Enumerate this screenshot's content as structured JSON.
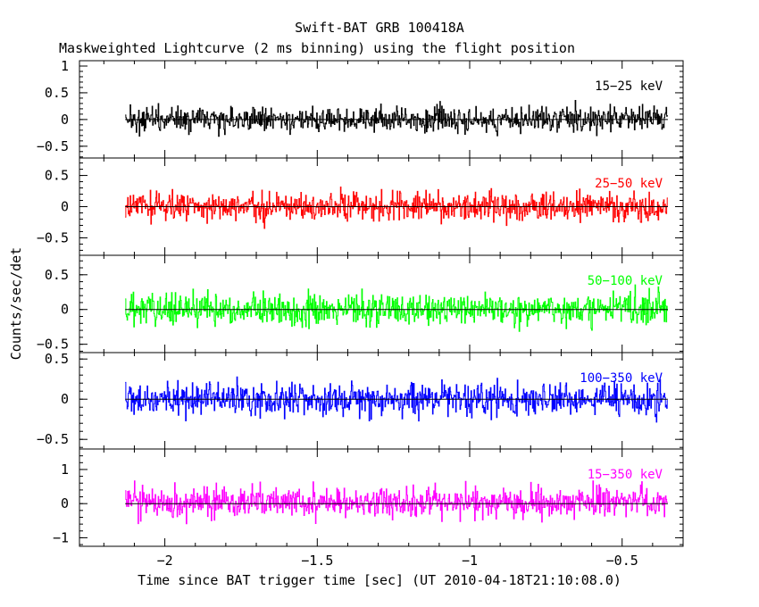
{
  "chart_data": {
    "type": "line",
    "title": "Swift-BAT GRB 100418A",
    "subtitle": "Maskweighted Lightcurve (2 ms binning) using the flight position",
    "xlabel": "Time since BAT trigger time [sec] (UT 2010-04-18T21:10:08.0)",
    "ylabel": "Counts/sec/det",
    "xlim": [
      -2.28,
      -0.3
    ],
    "data_x_range": [
      -2.13,
      -0.35
    ],
    "x_ticks": [
      -2,
      -1.5,
      -1,
      -0.5
    ],
    "x_tick_labels": [
      "−2",
      "−1.5",
      "−1",
      "−0.5"
    ],
    "grid": false,
    "panels": [
      {
        "band": "15−25 keV",
        "color": "#000000",
        "ylim": [
          -0.72,
          1.1
        ],
        "y_ticks": [
          -0.5,
          0,
          0.5,
          1
        ],
        "y_tick_labels": [
          "−0.5",
          "0",
          "0.5",
          "1"
        ],
        "amplitude": 0.2,
        "mean": 0.0
      },
      {
        "band": "25−50 keV",
        "color": "#ff0000",
        "ylim": [
          -0.78,
          0.78
        ],
        "y_ticks": [
          -0.5,
          0,
          0.5
        ],
        "y_tick_labels": [
          "−0.5",
          "0",
          "0.5"
        ],
        "amplitude": 0.2,
        "mean": 0.0
      },
      {
        "band": "50−100 keV",
        "color": "#00ff00",
        "ylim": [
          -0.62,
          0.78
        ],
        "y_ticks": [
          -0.5,
          0,
          0.5
        ],
        "y_tick_labels": [
          "−0.5",
          "0",
          "0.5"
        ],
        "amplitude": 0.2,
        "mean": 0.0
      },
      {
        "band": "100−350 keV",
        "color": "#0000ff",
        "ylim": [
          -0.62,
          0.58
        ],
        "y_ticks": [
          -0.5,
          0,
          0.5
        ],
        "y_tick_labels": [
          "−0.5",
          "0",
          "0.5"
        ],
        "amplitude": 0.18,
        "mean": 0.0
      },
      {
        "band": "15−350 keV",
        "color": "#ff00ff",
        "ylim": [
          -1.25,
          1.6
        ],
        "y_ticks": [
          -1,
          0,
          1
        ],
        "y_tick_labels": [
          "−1",
          "0",
          "1"
        ],
        "amplitude": 0.38,
        "mean": 0.05
      }
    ]
  }
}
